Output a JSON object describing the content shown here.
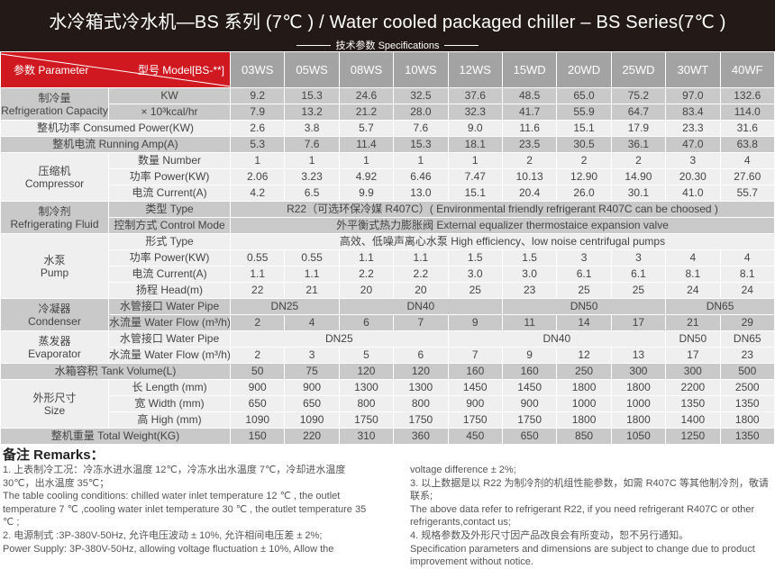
{
  "header": {
    "title": "水冷箱式冷水机—BS 系列 (7℃ ) / Water cooled packaged chiller – BS Series(7℃ )",
    "subtitle": "技术参数 Specifications"
  },
  "table": {
    "corner_parameter": "参数 Parameter",
    "corner_model": "型号 Model[BS-**]",
    "models": [
      "03WS",
      "05WS",
      "08WS",
      "10WS",
      "12WS",
      "15WD",
      "20WD",
      "25WD",
      "30WT",
      "40WF"
    ],
    "groups": [
      {
        "cn": "制冷量",
        "en": "Refrigeration Capacity",
        "shade": "dark",
        "rows": [
          {
            "label": "KW",
            "cells": [
              {
                "text": "9.2"
              },
              {
                "text": "15.3"
              },
              {
                "text": "24.6"
              },
              {
                "text": "32.5"
              },
              {
                "text": "37.6"
              },
              {
                "text": "48.5"
              },
              {
                "text": "65.0"
              },
              {
                "text": "75.2"
              },
              {
                "text": "97.0"
              },
              {
                "text": "132.6"
              }
            ]
          },
          {
            "label": "× 10³kcal/hr",
            "cells": [
              {
                "text": "7.9"
              },
              {
                "text": "13.2"
              },
              {
                "text": "21.2"
              },
              {
                "text": "28.0"
              },
              {
                "text": "32.3"
              },
              {
                "text": "41.7"
              },
              {
                "text": "55.9"
              },
              {
                "text": "64.7"
              },
              {
                "text": "83.4"
              },
              {
                "text": "114.0"
              }
            ]
          }
        ]
      },
      {
        "cn": "整机功率 Consumed Power(KW)",
        "en": "",
        "single": true,
        "shade": "light",
        "rows": [
          {
            "label": "",
            "cells": [
              {
                "text": "2.6"
              },
              {
                "text": "3.8"
              },
              {
                "text": "5.7"
              },
              {
                "text": "7.6"
              },
              {
                "text": "9.0"
              },
              {
                "text": "11.6"
              },
              {
                "text": "15.1"
              },
              {
                "text": "17.9"
              },
              {
                "text": "23.3"
              },
              {
                "text": "31.6"
              }
            ]
          }
        ]
      },
      {
        "cn": "整机电流 Running Amp(A)",
        "en": "",
        "single": true,
        "shade": "dark",
        "rows": [
          {
            "label": "",
            "cells": [
              {
                "text": "5.3"
              },
              {
                "text": "7.6"
              },
              {
                "text": "11.4"
              },
              {
                "text": "15.3"
              },
              {
                "text": "18.1"
              },
              {
                "text": "23.5"
              },
              {
                "text": "30.5"
              },
              {
                "text": "36.1"
              },
              {
                "text": "47.0"
              },
              {
                "text": "63.8"
              }
            ]
          }
        ]
      },
      {
        "cn": "压缩机",
        "en": "Compressor",
        "shade": "light",
        "rows": [
          {
            "label": "数量 Number",
            "cells": [
              {
                "text": "1"
              },
              {
                "text": "1"
              },
              {
                "text": "1"
              },
              {
                "text": "1"
              },
              {
                "text": "1"
              },
              {
                "text": "2"
              },
              {
                "text": "2"
              },
              {
                "text": "2"
              },
              {
                "text": "3"
              },
              {
                "text": "4"
              }
            ]
          },
          {
            "label": "功率 Power(KW)",
            "cells": [
              {
                "text": "2.06"
              },
              {
                "text": "3.23"
              },
              {
                "text": "4.92"
              },
              {
                "text": "6.46"
              },
              {
                "text": "7.47"
              },
              {
                "text": "10.13"
              },
              {
                "text": "12.90"
              },
              {
                "text": "14.90"
              },
              {
                "text": "20.30"
              },
              {
                "text": "27.60"
              }
            ]
          },
          {
            "label": "电流 Current(A)",
            "cells": [
              {
                "text": "4.2"
              },
              {
                "text": "6.5"
              },
              {
                "text": "9.9"
              },
              {
                "text": "13.0"
              },
              {
                "text": "15.1"
              },
              {
                "text": "20.4"
              },
              {
                "text": "26.0"
              },
              {
                "text": "30.1"
              },
              {
                "text": "41.0"
              },
              {
                "text": "55.7"
              }
            ]
          }
        ]
      },
      {
        "cn": "制冷剂",
        "en": "Refrigerating Fluid",
        "shade": "dark",
        "rows": [
          {
            "label": "类型 Type",
            "cells": [
              {
                "text": "R22（可选环保冷媒 R407C）( Environmental friendly refrigerant R407C can be choosed )",
                "span": 10
              }
            ]
          },
          {
            "label": "控制方式 Control Mode",
            "cells": [
              {
                "text": "外平衡式热力膨胀阀 External equalizer thermostaice expansion valve",
                "span": 10
              }
            ]
          }
        ]
      },
      {
        "cn": "水泵",
        "en": "Pump",
        "shade": "light",
        "rows": [
          {
            "label": "形式 Type",
            "cells": [
              {
                "text": "高效、低噪声离心水泵 High efficiency、low noise centrifugal pumps",
                "span": 10
              }
            ]
          },
          {
            "label": "功率 Power(KW)",
            "cells": [
              {
                "text": "0.55"
              },
              {
                "text": "0.55"
              },
              {
                "text": "1.1"
              },
              {
                "text": "1.1"
              },
              {
                "text": "1.5"
              },
              {
                "text": "1.5"
              },
              {
                "text": "3"
              },
              {
                "text": "3"
              },
              {
                "text": "4"
              },
              {
                "text": "4"
              }
            ]
          },
          {
            "label": "电流 Current(A)",
            "cells": [
              {
                "text": "1.1"
              },
              {
                "text": "1.1"
              },
              {
                "text": "2.2"
              },
              {
                "text": "2.2"
              },
              {
                "text": "3.0"
              },
              {
                "text": "3.0"
              },
              {
                "text": "6.1"
              },
              {
                "text": "6.1"
              },
              {
                "text": "8.1"
              },
              {
                "text": "8.1"
              }
            ]
          },
          {
            "label": "扬程 Head(m)",
            "cells": [
              {
                "text": "22"
              },
              {
                "text": "21"
              },
              {
                "text": "20"
              },
              {
                "text": "20"
              },
              {
                "text": "25"
              },
              {
                "text": "23"
              },
              {
                "text": "25"
              },
              {
                "text": "25"
              },
              {
                "text": "24"
              },
              {
                "text": "24"
              }
            ]
          }
        ]
      },
      {
        "cn": "冷凝器",
        "en": "Condenser",
        "shade": "dark",
        "rows": [
          {
            "label": "水管接口 Water Pipe",
            "cells": [
              {
                "text": "DN25",
                "span": 2
              },
              {
                "text": "DN40",
                "span": 3
              },
              {
                "text": "DN50",
                "span": 3
              },
              {
                "text": "DN65",
                "span": 2
              }
            ]
          },
          {
            "label": "水流量 Water Flow (m³/h)",
            "cells": [
              {
                "text": "2"
              },
              {
                "text": "4"
              },
              {
                "text": "6"
              },
              {
                "text": "7"
              },
              {
                "text": "9"
              },
              {
                "text": "11"
              },
              {
                "text": "14"
              },
              {
                "text": "17"
              },
              {
                "text": "21"
              },
              {
                "text": "29"
              }
            ]
          }
        ]
      },
      {
        "cn": "蒸发器",
        "en": "Evaporator",
        "shade": "light",
        "rows": [
          {
            "label": "水管接口 Water Pipe",
            "cells": [
              {
                "text": "DN25",
                "span": 4
              },
              {
                "text": "DN40",
                "span": 4
              },
              {
                "text": "DN50"
              },
              {
                "text": "DN65"
              }
            ]
          },
          {
            "label": "水流量 Water Flow (m³/h)",
            "cells": [
              {
                "text": "2"
              },
              {
                "text": "3"
              },
              {
                "text": "5"
              },
              {
                "text": "6"
              },
              {
                "text": "7"
              },
              {
                "text": "9"
              },
              {
                "text": "12"
              },
              {
                "text": "13"
              },
              {
                "text": "17"
              },
              {
                "text": "23"
              }
            ]
          }
        ]
      },
      {
        "cn": "水箱容积 Tank Volume(L)",
        "en": "",
        "single": true,
        "shade": "dark",
        "rows": [
          {
            "label": "",
            "cells": [
              {
                "text": "50"
              },
              {
                "text": "75"
              },
              {
                "text": "120"
              },
              {
                "text": "120"
              },
              {
                "text": "160"
              },
              {
                "text": "160"
              },
              {
                "text": "250"
              },
              {
                "text": "300"
              },
              {
                "text": "300"
              },
              {
                "text": "500"
              }
            ]
          }
        ]
      },
      {
        "cn": "外形尺寸",
        "en": "Size",
        "shade": "light",
        "rows": [
          {
            "label": "长 Length (mm)",
            "cells": [
              {
                "text": "900"
              },
              {
                "text": "900"
              },
              {
                "text": "1300"
              },
              {
                "text": "1300"
              },
              {
                "text": "1450"
              },
              {
                "text": "1450"
              },
              {
                "text": "1800"
              },
              {
                "text": "1800"
              },
              {
                "text": "2200"
              },
              {
                "text": "2500"
              }
            ]
          },
          {
            "label": "宽 Width (mm)",
            "cells": [
              {
                "text": "650"
              },
              {
                "text": "650"
              },
              {
                "text": "800"
              },
              {
                "text": "800"
              },
              {
                "text": "900"
              },
              {
                "text": "900"
              },
              {
                "text": "1000"
              },
              {
                "text": "1000"
              },
              {
                "text": "1350"
              },
              {
                "text": "1350"
              }
            ]
          },
          {
            "label": "高 High (mm)",
            "cells": [
              {
                "text": "1090"
              },
              {
                "text": "1090"
              },
              {
                "text": "1750"
              },
              {
                "text": "1750"
              },
              {
                "text": "1750"
              },
              {
                "text": "1750"
              },
              {
                "text": "1800"
              },
              {
                "text": "1800"
              },
              {
                "text": "1400"
              },
              {
                "text": "1800"
              }
            ]
          }
        ]
      },
      {
        "cn": "整机重量 Total Weight(KG)",
        "en": "",
        "single": true,
        "shade": "dark",
        "rows": [
          {
            "label": "",
            "cells": [
              {
                "text": "150"
              },
              {
                "text": "220"
              },
              {
                "text": "310"
              },
              {
                "text": "360"
              },
              {
                "text": "450"
              },
              {
                "text": "650"
              },
              {
                "text": "850"
              },
              {
                "text": "1050"
              },
              {
                "text": "1250"
              },
              {
                "text": "1350"
              }
            ]
          }
        ]
      }
    ]
  },
  "remarks": {
    "title": "备注 Remarks：",
    "left": [
      "1. 上表制冷工况：冷冻水进水温度 12℃，冷冻水出水温度 7℃，冷却进水温度 30℃，出水温度 35℃；",
      "The table cooling conditions: chilled water inlet temperature 12 ℃ , the outlet temperature 7 ℃ ,cooling water inlet temperature 30 ℃ , the outlet temperature 35 ℃ ;",
      "2. 电源制式 :3P-380V-50Hz, 允许电压波动 ± 10%, 允许相间电压差 ± 2%;",
      "Power Supply: 3P-380V-50Hz, allowing voltage fluctuation ± 10%, Allow the"
    ],
    "right": [
      "voltage difference ± 2%;",
      "3. 以上数据是以 R22 为制冷剂的机组性能参数，如需 R407C 等其他制冷剂，敬请联系;",
      "The above data refer to refrigerant R22, if you need refrigerant R407C or other refrigerants,contact us;",
      "4. 规格参数及外形尺寸因产品改良会有所变动，恕不另行通知。",
      "Specification parameters and dimensions are subject to change due to product improvement without notice."
    ]
  }
}
